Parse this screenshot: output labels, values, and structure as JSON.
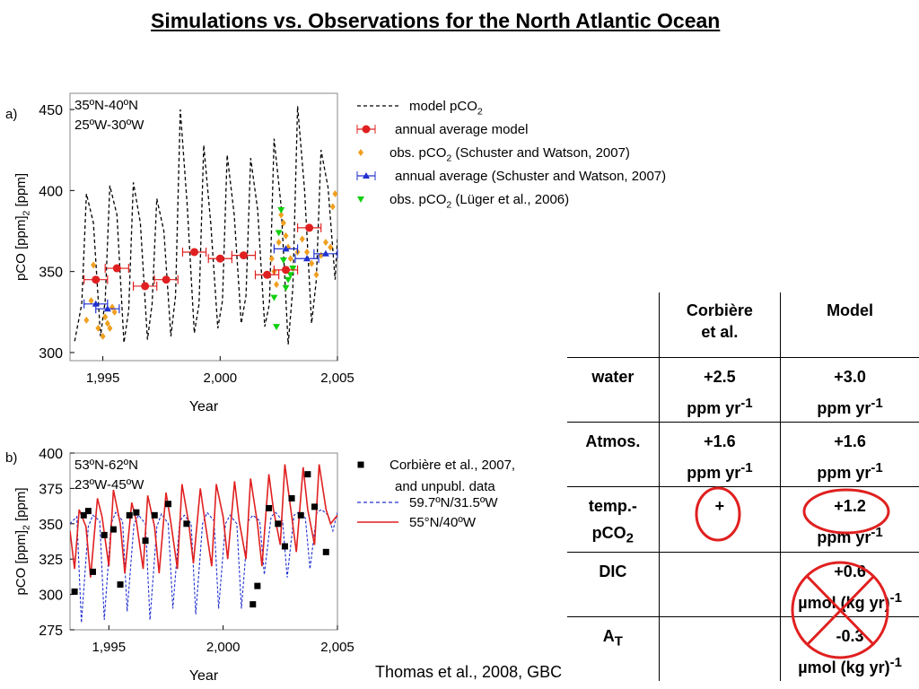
{
  "title": "Simulations vs. Observations for the North Atlantic Ocean",
  "credit": "Thomas et al., 2008, GBC",
  "chart_data": [
    {
      "type": "line",
      "panel": "a)",
      "region": [
        "35ºN-40ºN",
        "25ºW-30ºW"
      ],
      "xlabel": "Year",
      "ylabel": "pCO2 [ppm]",
      "xlim": [
        1993.6,
        2005
      ],
      "ylim": [
        295,
        460
      ],
      "xticks": [
        1995,
        2000,
        2005
      ],
      "xtick_labels": [
        "1,995",
        "2,000",
        "2,005"
      ],
      "yticks": [
        300,
        350,
        400,
        450
      ],
      "legend": [
        {
          "label": "model pCO",
          "sub": "2",
          "after": "",
          "style": "dashed",
          "color": "#000000"
        },
        {
          "label": "annual average model",
          "sub": "",
          "after": "",
          "style": "errorbar-circle",
          "color": "#e02020"
        },
        {
          "label": "obs. pCO",
          "sub": "2",
          "after": " (Schuster and Watson, 2007)",
          "style": "diamond",
          "color": "#f0a020"
        },
        {
          "label": "annual average (Schuster and Watson, 2007)",
          "sub": "",
          "after": "",
          "style": "errorbar-triangle",
          "color": "#2030d0"
        },
        {
          "label": "obs. pCO",
          "sub": "2",
          "after": " (Lüger et al., 2006)",
          "style": "triangle-down",
          "color": "#10d010"
        }
      ],
      "model_dashed": {
        "x": [
          1993.8,
          1994.1,
          1994.3,
          1994.6,
          1994.9,
          1995.1,
          1995.3,
          1995.6,
          1995.9,
          1996.1,
          1996.3,
          1996.6,
          1996.9,
          1997.1,
          1997.3,
          1997.6,
          1997.9,
          1998.1,
          1998.3,
          1998.6,
          1998.9,
          1999.1,
          1999.3,
          1999.6,
          1999.9,
          2000.1,
          2000.3,
          2000.6,
          2000.9,
          2001.1,
          2001.3,
          2001.6,
          2001.9,
          2002.1,
          2002.3,
          2002.6,
          2002.9,
          2003.1,
          2003.3,
          2003.6,
          2003.9,
          2004.1,
          2004.3,
          2004.6,
          2004.9,
          2005.0
        ],
        "y": [
          307,
          330,
          398,
          380,
          310,
          332,
          403,
          385,
          306,
          326,
          405,
          380,
          308,
          330,
          395,
          375,
          310,
          335,
          450,
          390,
          312,
          330,
          428,
          380,
          315,
          332,
          422,
          385,
          318,
          335,
          420,
          388,
          316,
          330,
          432,
          390,
          305,
          340,
          452,
          400,
          318,
          345,
          425,
          402,
          345,
          370
        ]
      },
      "annual_model": {
        "x": [
          1994.7,
          1995.6,
          1996.8,
          1997.7,
          1998.9,
          2000.0,
          2001.0,
          2002.0,
          2002.8,
          2003.8
        ],
        "y": [
          345,
          352,
          341,
          345,
          362,
          358,
          360,
          348,
          351,
          377
        ],
        "xerr": 0.5
      },
      "obs_schuster": {
        "x": [
          1994.3,
          1994.5,
          1994.6,
          1994.8,
          1995.0,
          1995.1,
          1995.2,
          1995.3,
          1995.4,
          1995.5,
          2002.2,
          2002.3,
          2002.4,
          2002.5,
          2002.6,
          2002.7,
          2002.8,
          2002.9,
          2003.0,
          2003.1,
          2003.3,
          2003.5,
          2003.7,
          2003.9,
          2004.1,
          2004.3,
          2004.5,
          2004.7,
          2004.8,
          2004.9
        ],
        "y": [
          320,
          332,
          354,
          315,
          310,
          322,
          318,
          315,
          328,
          325,
          358,
          350,
          342,
          368,
          385,
          380,
          372,
          365,
          358,
          352,
          362,
          370,
          362,
          355,
          348,
          360,
          368,
          365,
          390,
          398
        ]
      },
      "annual_schuster": {
        "x": [
          1994.7,
          1995.2,
          2002.8,
          2003.7,
          2004.5
        ],
        "y": [
          330,
          327,
          364,
          358,
          361
        ],
        "xerr": 0.5
      },
      "obs_luger": {
        "x": [
          2002.3,
          2002.4,
          2002.5,
          2002.6,
          2002.7,
          2002.8,
          2002.9,
          2003.0,
          2003.1
        ],
        "y": [
          334,
          316,
          374,
          388,
          357,
          340,
          345,
          348,
          352
        ]
      }
    },
    {
      "type": "line",
      "panel": "b)",
      "region": [
        "53ºN-62ºN",
        "23ºW-45ºW"
      ],
      "xlabel": "Year",
      "ylabel": "pCO2 [ppm]",
      "xlim": [
        1993.3,
        2005
      ],
      "ylim": [
        275,
        400
      ],
      "xticks": [
        1995,
        2000,
        2005
      ],
      "xtick_labels": [
        "1,995",
        "2,000",
        "2,005"
      ],
      "yticks": [
        275,
        300,
        325,
        350,
        375,
        400
      ],
      "legend": [
        {
          "label": "Corbière et al., 2007,",
          "label2": "and unpubl. data",
          "style": "square",
          "color": "#000000"
        },
        {
          "label": "59.7ºN/31.5ºW",
          "style": "dashed",
          "color": "#2030d0"
        },
        {
          "label": "55°N/40ºW",
          "style": "solid",
          "color": "#e02020"
        }
      ],
      "corbiere": {
        "x": [
          1993.5,
          1993.9,
          1994.1,
          1994.3,
          1994.8,
          1995.2,
          1995.5,
          1995.9,
          1996.2,
          1996.6,
          1997.0,
          1997.6,
          1998.4,
          2001.3,
          2001.5,
          2002.0,
          2002.4,
          2002.7,
          2003.0,
          2003.4,
          2003.7,
          2004.0,
          2004.5
        ],
        "y": [
          302,
          356,
          359,
          316,
          342,
          346,
          307,
          356,
          358,
          338,
          356,
          364,
          350,
          293,
          306,
          361,
          350,
          334,
          368,
          356,
          385,
          362,
          330
        ]
      },
      "north_dashed": {
        "x": [
          1993.3,
          1993.6,
          1993.8,
          1994.1,
          1994.3,
          1994.6,
          1994.8,
          1995.1,
          1995.3,
          1995.6,
          1995.8,
          1996.1,
          1996.3,
          1996.6,
          1996.8,
          1997.1,
          1997.3,
          1997.6,
          1997.8,
          1998.1,
          1998.3,
          1998.6,
          1998.8,
          1999.1,
          1999.3,
          1999.6,
          1999.8,
          2000.1,
          2000.3,
          2000.6,
          2000.8,
          2001.1,
          2001.3,
          2001.6,
          2001.8,
          2002.1,
          2002.3,
          2002.6,
          2002.8,
          2003.1,
          2003.3,
          2003.6,
          2003.8,
          2004.1,
          2004.3,
          2004.6,
          2004.8,
          2005.0
        ],
        "y": [
          350,
          355,
          280,
          348,
          356,
          352,
          282,
          350,
          358,
          352,
          288,
          350,
          356,
          350,
          282,
          348,
          357,
          350,
          290,
          352,
          356,
          350,
          286,
          350,
          358,
          352,
          290,
          350,
          356,
          350,
          290,
          352,
          356,
          352,
          314,
          355,
          358,
          352,
          312,
          356,
          358,
          354,
          318,
          358,
          360,
          356,
          345,
          358
        ]
      },
      "south_solid": {
        "x": [
          1993.3,
          1993.5,
          1993.7,
          1994.0,
          1994.2,
          1994.5,
          1994.7,
          1995.0,
          1995.2,
          1995.5,
          1995.7,
          1996.0,
          1996.2,
          1996.5,
          1996.7,
          1997.0,
          1997.2,
          1997.5,
          1997.7,
          1998.0,
          1998.2,
          1998.5,
          1998.7,
          1999.0,
          1999.2,
          1999.5,
          1999.7,
          2000.0,
          2000.2,
          2000.5,
          2000.7,
          2001.0,
          2001.2,
          2001.5,
          2001.7,
          2002.0,
          2002.2,
          2002.5,
          2002.7,
          2003.0,
          2003.2,
          2003.5,
          2003.7,
          2004.0,
          2004.2,
          2004.5,
          2004.7,
          2005.0
        ],
        "y": [
          345,
          318,
          360,
          348,
          312,
          368,
          355,
          320,
          374,
          350,
          315,
          365,
          352,
          318,
          370,
          348,
          315,
          372,
          352,
          318,
          378,
          350,
          322,
          375,
          352,
          320,
          378,
          355,
          325,
          380,
          352,
          325,
          382,
          350,
          320,
          385,
          360,
          335,
          392,
          355,
          330,
          390,
          360,
          335,
          392,
          360,
          350,
          356
        ]
      }
    }
  ],
  "table": {
    "header": [
      "",
      "Corbière\net al.",
      "Model"
    ],
    "rows": [
      {
        "label": "water",
        "label_sub": "",
        "corbiere": "+2.5",
        "corbiere_unit": "ppm yr",
        "corbiere_unit_sup": "-1",
        "model": "+3.0",
        "model_unit": "ppm yr",
        "model_unit_sup": "-1"
      },
      {
        "label": "Atmos.",
        "label_sub": "",
        "corbiere": "+1.6",
        "corbiere_unit": "ppm yr",
        "corbiere_unit_sup": "-1",
        "model": "+1.6",
        "model_unit": "ppm yr",
        "model_unit_sup": "-1"
      },
      {
        "label": "temp.-",
        "label2": "pCO",
        "label_sub": "2",
        "corbiere": "+",
        "corbiere_unit": "",
        "corbiere_unit_sup": "",
        "model": "+1.2",
        "model_unit": "ppm yr",
        "model_unit_sup": "-1"
      },
      {
        "label": "DIC",
        "label_sub": "",
        "corbiere": "",
        "corbiere_unit": "",
        "corbiere_unit_sup": "",
        "model": "+0.6",
        "model_unit": "µmol (kg yr)",
        "model_unit_sup": "-1"
      },
      {
        "label": "A",
        "label_sub": "T",
        "corbiere": "",
        "corbiere_unit": "",
        "corbiere_unit_sup": "",
        "model": "-0.3",
        "model_unit": "µmol (kg yr)",
        "model_unit_sup": "-1"
      }
    ]
  },
  "colors": {
    "annotation": "#e02020"
  }
}
